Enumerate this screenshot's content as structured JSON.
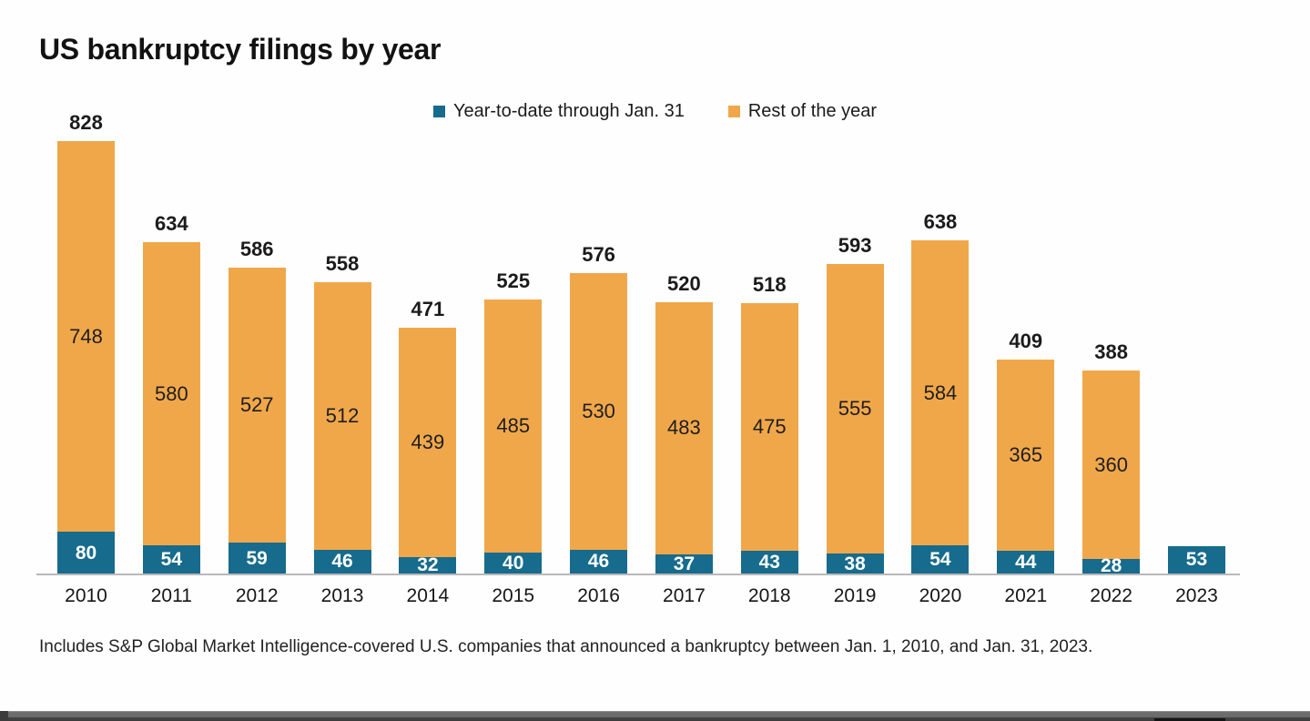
{
  "title": "US bankruptcy filings by year",
  "footnote": "Includes S&P Global Market Intelligence-covered U.S. companies that announced a bankruptcy between Jan. 1, 2010, and Jan. 31, 2023.",
  "colors": {
    "ytd_teal": "#176B8D",
    "rest_orange": "#F0A74A",
    "axis_gray": "#B9B9B9",
    "text_dark": "#1B1B1B"
  },
  "chart_data": {
    "type": "bar",
    "stacked": true,
    "grid": false,
    "legend_position": "top-center",
    "categories": [
      "2010",
      "2011",
      "2012",
      "2013",
      "2014",
      "2015",
      "2016",
      "2017",
      "2018",
      "2019",
      "2020",
      "2021",
      "2022",
      "2023"
    ],
    "series": [
      {
        "name": "Year-to-date through Jan. 31",
        "color": "#176B8D",
        "values": [
          80,
          54,
          59,
          46,
          32,
          40,
          46,
          37,
          43,
          38,
          54,
          44,
          28,
          53
        ]
      },
      {
        "name": "Rest of the year",
        "color": "#F0A74A",
        "values": [
          748,
          580,
          527,
          512,
          439,
          485,
          530,
          483,
          475,
          555,
          584,
          365,
          360,
          null
        ]
      }
    ],
    "totals": [
      828,
      634,
      586,
      558,
      471,
      525,
      576,
      520,
      518,
      593,
      638,
      409,
      388,
      null
    ],
    "xlabel": "",
    "ylabel": "",
    "ylim": [
      0,
      828
    ]
  }
}
